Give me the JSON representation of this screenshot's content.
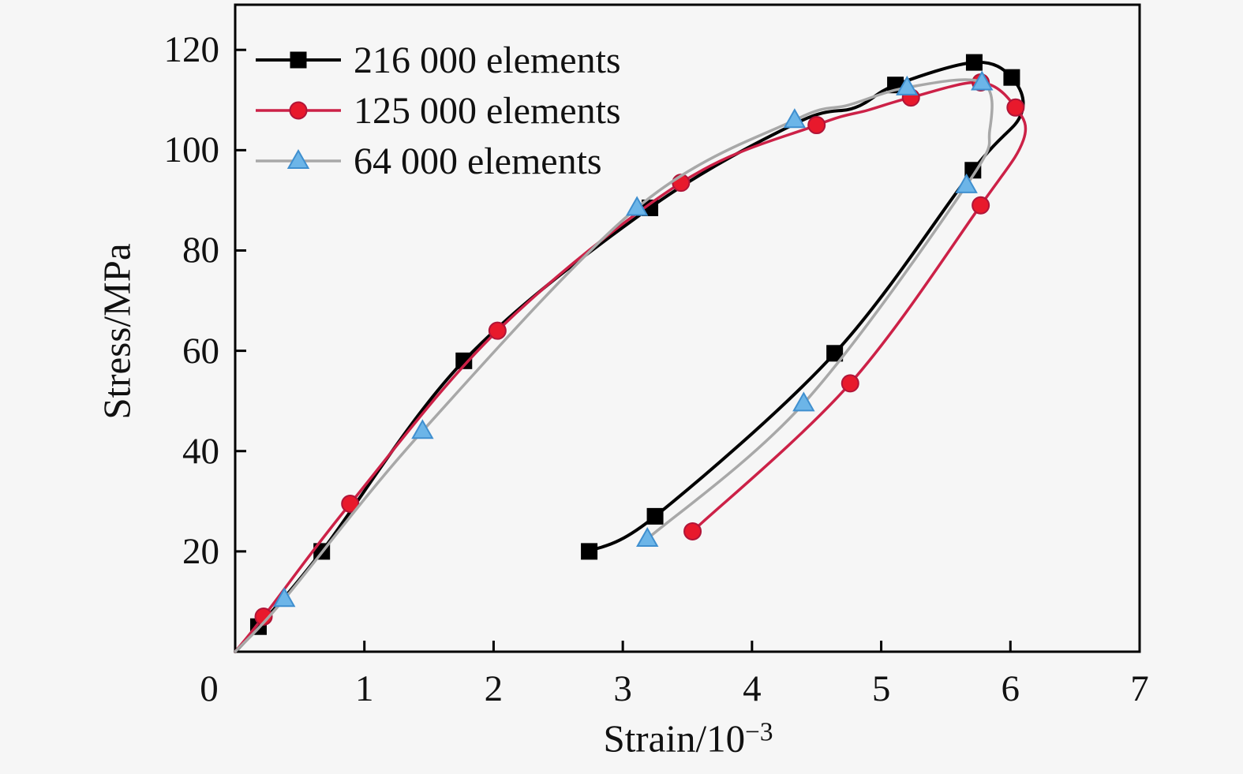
{
  "figure": {
    "background": "#f6f6f6",
    "axis_color": "#000000",
    "text_color": "#111111"
  },
  "chart_data": {
    "type": "line",
    "title": "",
    "xlabel": "Strain/10⁻³",
    "xlabel_base": "Strain/10",
    "xlabel_exp": "−3",
    "ylabel": "Stress/MPa",
    "xlim": [
      0,
      7
    ],
    "ylim": [
      0,
      129
    ],
    "xticks": [
      0,
      1,
      2,
      3,
      4,
      5,
      6,
      7
    ],
    "yticks": [
      20,
      40,
      60,
      80,
      100,
      120
    ],
    "grid": false,
    "legend_position": "upper-left-inside",
    "loop_note": "each series rises from origin to a peak then unloads back to lower strain; points ordered along the curve; marker flag 1 = visible marker, 0 = line shaping point",
    "series": [
      {
        "name": "216 000 elements",
        "marker": "square",
        "line_color": "#000000",
        "line_width": 4,
        "marker_color": "#000000",
        "marker_edge": "#000000",
        "points": [
          [
            0,
            0,
            0
          ],
          [
            0.18,
            5,
            1
          ],
          [
            0.67,
            20,
            1
          ],
          [
            1.77,
            58,
            1
          ],
          [
            3.21,
            88.5,
            1
          ],
          [
            4.35,
            105.5,
            0
          ],
          [
            4.8,
            108.5,
            0
          ],
          [
            5.11,
            113,
            1
          ],
          [
            5.72,
            117.5,
            1
          ],
          [
            6.01,
            114.5,
            1
          ],
          [
            6.08,
            107,
            0
          ],
          [
            5.71,
            96,
            1
          ],
          [
            4.64,
            59.5,
            1
          ],
          [
            3.25,
            27,
            1
          ],
          [
            2.74,
            20,
            1
          ]
        ]
      },
      {
        "name": "125 000 elements",
        "marker": "circle",
        "line_color": "#cc2147",
        "line_width": 3.5,
        "marker_color": "#e8192c",
        "marker_edge": "#b01538",
        "points": [
          [
            0,
            0,
            0
          ],
          [
            0.22,
            7,
            1
          ],
          [
            0.89,
            29.5,
            1
          ],
          [
            2.03,
            64,
            1
          ],
          [
            3.45,
            93.5,
            1
          ],
          [
            4.5,
            105,
            1
          ],
          [
            4.9,
            108,
            0
          ],
          [
            5.23,
            110.5,
            1
          ],
          [
            5.77,
            113.5,
            1
          ],
          [
            6.04,
            108.5,
            1
          ],
          [
            6.1,
            102,
            0
          ],
          [
            5.77,
            89,
            1
          ],
          [
            4.76,
            53.5,
            1
          ],
          [
            3.54,
            24,
            1
          ]
        ]
      },
      {
        "name": "64 000 elements",
        "marker": "triangle",
        "line_color": "#a8a8a8",
        "line_width": 3.5,
        "marker_color": "#6cb5e8",
        "marker_edge": "#3f8fcf",
        "points": [
          [
            0,
            0,
            0
          ],
          [
            0.38,
            10.5,
            1
          ],
          [
            1.45,
            44,
            1
          ],
          [
            3.11,
            88.5,
            1
          ],
          [
            4.33,
            106,
            1
          ],
          [
            4.75,
            109,
            0
          ],
          [
            5.2,
            112.5,
            1
          ],
          [
            5.78,
            113.5,
            1
          ],
          [
            5.84,
            104,
            0
          ],
          [
            5.66,
            93,
            1
          ],
          [
            4.4,
            49.5,
            1
          ],
          [
            3.19,
            22.5,
            1
          ]
        ]
      }
    ]
  }
}
